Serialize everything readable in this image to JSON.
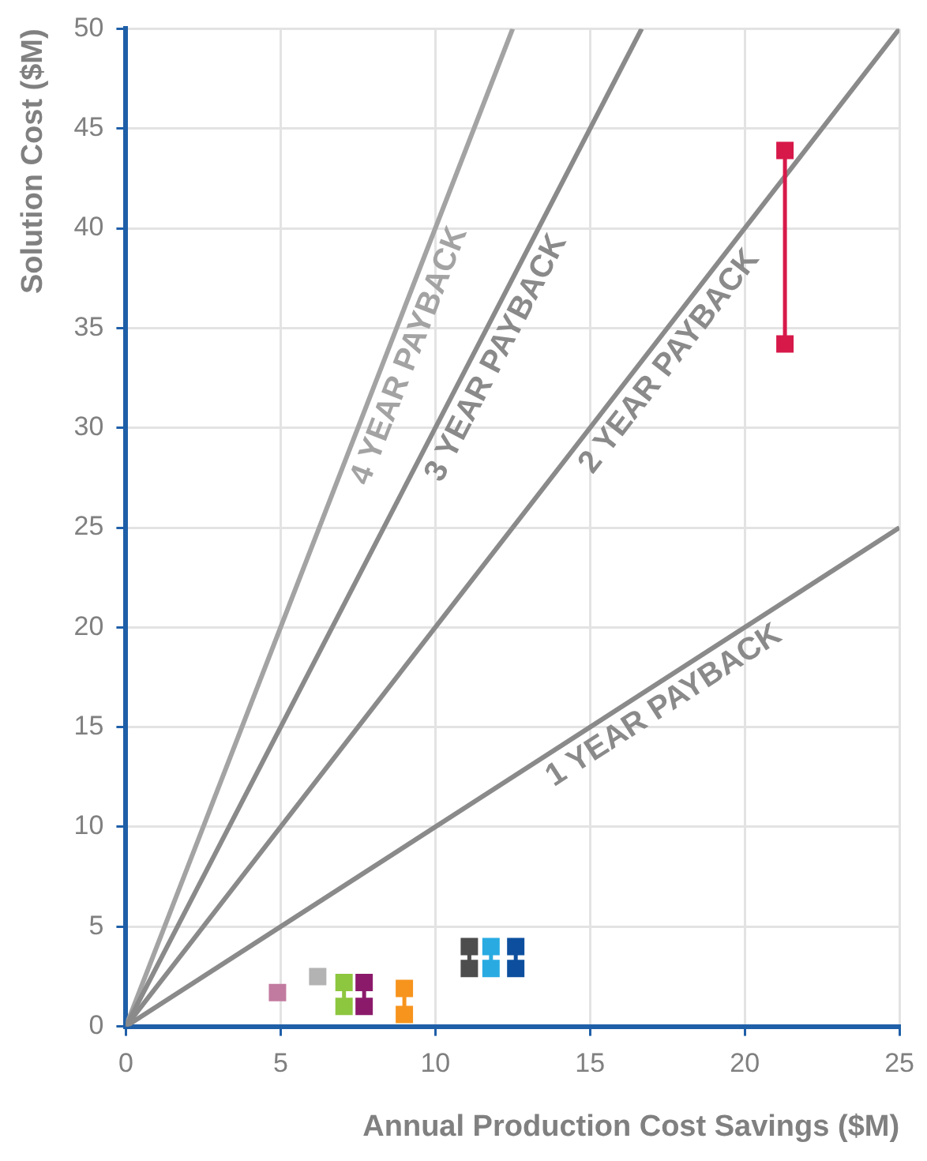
{
  "chart_data": {
    "type": "line",
    "xlabel": "Annual Production Cost Savings ($M)",
    "ylabel": "Solution Cost ($M)",
    "xlim": [
      0,
      25
    ],
    "xticks": [
      0,
      5,
      10,
      15,
      20,
      25
    ],
    "ylim": [
      0,
      50
    ],
    "yticks": [
      0,
      5,
      10,
      15,
      20,
      25,
      30,
      35,
      40,
      45,
      50
    ],
    "grid": true,
    "legend": false,
    "series": [
      {
        "name": "1 YEAR PAYBACK",
        "color": "#8a8a8a",
        "x": [
          0,
          25
        ],
        "values": [
          0,
          25
        ],
        "marker": "none"
      },
      {
        "name": "2 YEAR PAYBACK",
        "color": "#8a8a8a",
        "x": [
          0,
          25
        ],
        "values": [
          0,
          50
        ],
        "marker": "none"
      },
      {
        "name": "3 YEAR PAYBACK",
        "color": "#8a8a8a",
        "x": [
          0,
          16.67
        ],
        "values": [
          0,
          50
        ],
        "marker": "none"
      },
      {
        "name": "4 YEAR PAYBACK",
        "color": "#a3a3a3",
        "x": [
          0,
          12.5
        ],
        "values": [
          0,
          50
        ],
        "marker": "none"
      },
      {
        "color": "#c27ba0",
        "x": [
          4.9
        ],
        "values": [
          1.7
        ],
        "marker": "square"
      },
      {
        "color": "#b3b3b3",
        "x": [
          6.2
        ],
        "values": [
          2.5
        ],
        "marker": "square"
      },
      {
        "color": "#8dc63f",
        "x": [
          7.05,
          7.05
        ],
        "values": [
          1.0,
          2.2
        ],
        "marker": "square"
      },
      {
        "color": "#8b1a6b",
        "x": [
          7.7,
          7.7
        ],
        "values": [
          1.0,
          2.2
        ],
        "marker": "square"
      },
      {
        "color": "#f7941d",
        "x": [
          9.0,
          9.0
        ],
        "values": [
          0.6,
          1.9
        ],
        "marker": "square"
      },
      {
        "color": "#4d4d4d",
        "x": [
          11.1,
          11.1
        ],
        "values": [
          2.9,
          4.0
        ],
        "marker": "square"
      },
      {
        "color": "#29abe2",
        "x": [
          11.8,
          11.8
        ],
        "values": [
          2.9,
          4.0
        ],
        "marker": "square"
      },
      {
        "color": "#0d4f9e",
        "x": [
          12.6,
          12.6
        ],
        "values": [
          2.9,
          4.0
        ],
        "marker": "square"
      },
      {
        "color": "#d7194a",
        "x": [
          21.3,
          21.3
        ],
        "values": [
          34.2,
          43.9
        ],
        "marker": "square"
      }
    ]
  }
}
